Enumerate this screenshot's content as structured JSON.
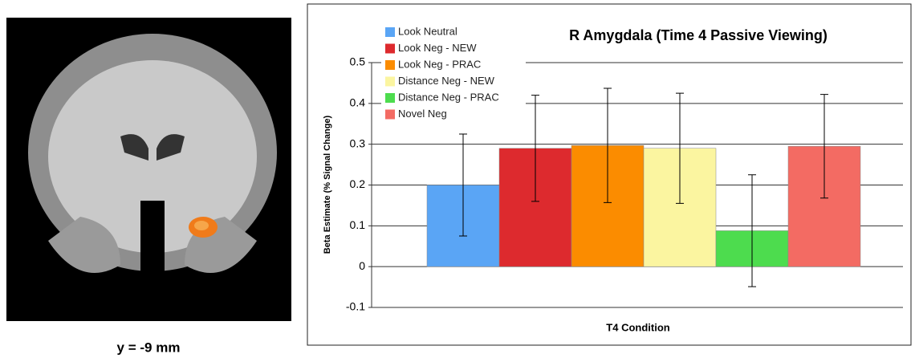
{
  "caption": "y = -9 mm",
  "chart_data": {
    "type": "bar",
    "title": "R Amygdala (Time 4 Passive Viewing)",
    "x_label": "T4 Condition",
    "y_label": "Beta Estimate (% Signal Change)",
    "categories": [
      null
    ],
    "series": [
      {
        "name": "Look Neutral",
        "color": "#5aa5f5",
        "values": [
          0.2
        ],
        "errors": [
          0.125
        ]
      },
      {
        "name": "Look Neg - NEW",
        "color": "#dd2a2e",
        "values": [
          0.29
        ],
        "errors": [
          0.13
        ]
      },
      {
        "name": "Look Neg - PRAC",
        "color": "#fb8c00",
        "values": [
          0.297
        ],
        "errors": [
          0.14
        ]
      },
      {
        "name": "Distance Neg - NEW",
        "color": "#fbf5a0",
        "values": [
          0.29
        ],
        "errors": [
          0.135
        ]
      },
      {
        "name": "Distance Neg - PRAC",
        "color": "#4ddc4e",
        "values": [
          0.088
        ],
        "errors": [
          0.137
        ]
      },
      {
        "name": "Novel Neg",
        "color": "#f36b63",
        "values": [
          0.295
        ],
        "errors": [
          0.127
        ]
      }
    ],
    "ylim": [
      -0.1,
      0.5
    ],
    "yticks": [
      -0.1,
      0,
      0.1,
      0.2,
      0.3,
      0.4,
      0.5
    ],
    "grid": true,
    "legend": "top-left"
  }
}
